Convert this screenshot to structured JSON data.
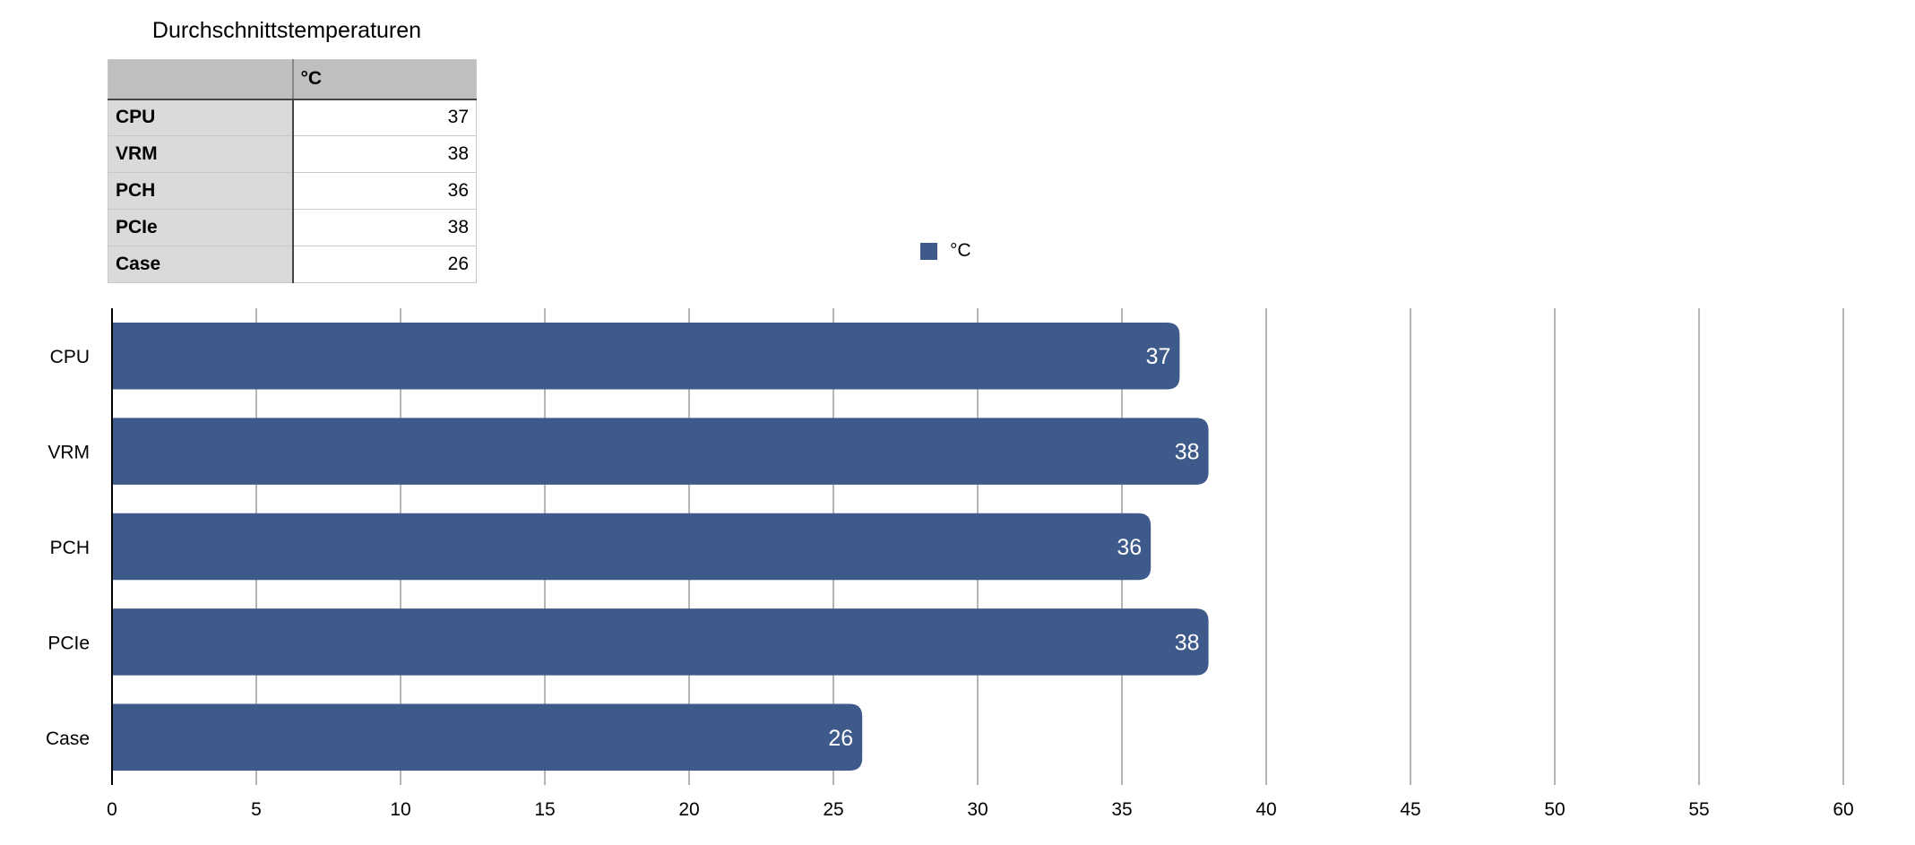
{
  "table": {
    "title": "Durchschnittstemperaturen",
    "column_header": "°C",
    "rows": [
      {
        "label": "CPU",
        "value": "37"
      },
      {
        "label": "VRM",
        "value": "38"
      },
      {
        "label": "PCH",
        "value": "36"
      },
      {
        "label": "PCIe",
        "value": "38"
      },
      {
        "label": "Case",
        "value": "26"
      }
    ]
  },
  "legend": {
    "label": "°C",
    "color": "#3e5a8a"
  },
  "chart_data": {
    "type": "bar",
    "orientation": "horizontal",
    "categories": [
      "CPU",
      "VRM",
      "PCH",
      "PCIe",
      "Case"
    ],
    "series": [
      {
        "name": "°C",
        "values": [
          37,
          38,
          36,
          38,
          26
        ],
        "color": "#3e5a8a"
      }
    ],
    "xlim": [
      0,
      60
    ],
    "xticks": [
      0,
      5,
      10,
      15,
      20,
      25,
      30,
      35,
      40,
      45,
      50,
      55,
      60
    ],
    "grid": true,
    "legend_position": "top-center",
    "data_labels": true,
    "title": "",
    "xlabel": "",
    "ylabel": ""
  }
}
